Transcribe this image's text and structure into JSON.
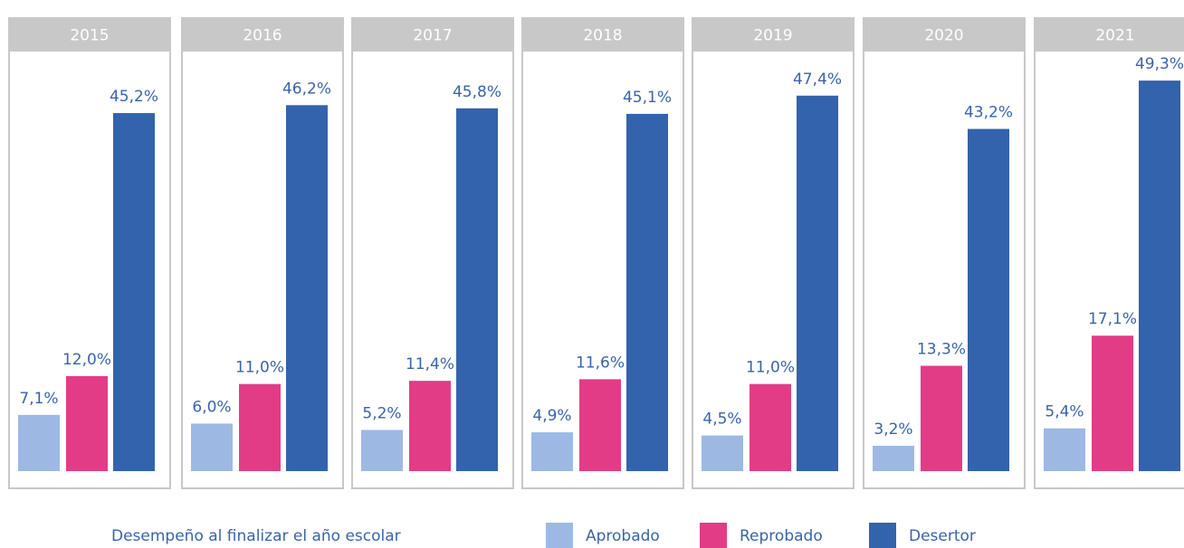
{
  "chart_data": {
    "type": "bar",
    "categories": [
      "2015",
      "2016",
      "2017",
      "2018",
      "2019",
      "2020",
      "2021"
    ],
    "legend_title": "Desempeño al finalizar el año escolar",
    "series": [
      {
        "name": "Aprobado",
        "color": "#9db9e3",
        "values": [
          7.1,
          6.0,
          5.2,
          4.9,
          4.5,
          3.2,
          5.4
        ],
        "value_labels": [
          "7,1%",
          "6,0%",
          "5,2%",
          "4,9%",
          "4,5%",
          "3,2%",
          "5,4%"
        ]
      },
      {
        "name": "Reprobado",
        "color": "#e23c87",
        "values": [
          12.0,
          11.0,
          11.4,
          11.6,
          11.0,
          13.3,
          17.1
        ],
        "value_labels": [
          "12,0%",
          "11,0%",
          "11,4%",
          "11,6%",
          "11,0%",
          "13,3%",
          "17,1%"
        ]
      },
      {
        "name": "Desertor",
        "color": "#3363ac",
        "values": [
          45.2,
          46.2,
          45.8,
          45.1,
          47.4,
          43.2,
          49.3
        ],
        "value_labels": [
          "45,2%",
          "46,2%",
          "45,8%",
          "45,1%",
          "47,4%",
          "43,2%",
          "49,3%"
        ]
      }
    ]
  }
}
